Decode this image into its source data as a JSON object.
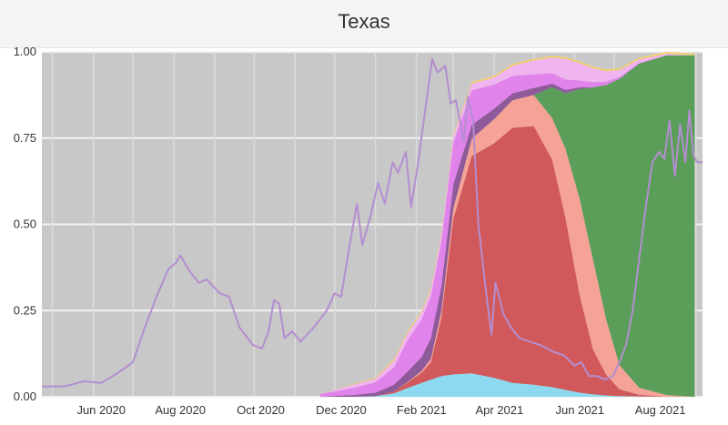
{
  "chart_data": {
    "type": "area",
    "title": "Texas",
    "x_tick_labels": [
      "Jun 2020",
      "Aug 2020",
      "Oct 2020",
      "Dec 2020",
      "Feb 2021",
      "Apr 2021",
      "Jun 2021",
      "Aug 2021"
    ],
    "y_tick_labels": [
      "0.00",
      "0.25",
      "0.50",
      "0.75",
      "1.00"
    ],
    "ylim": [
      0,
      1
    ],
    "xlim": [
      "2020-04-23",
      "2021-09-06"
    ],
    "grid": true,
    "legend": "none",
    "stack_dates": [
      "2020-11-20",
      "2020-12-15",
      "2021-01-01",
      "2021-01-15",
      "2021-01-25",
      "2021-02-05",
      "2021-02-12",
      "2021-02-20",
      "2021-03-01",
      "2021-03-15",
      "2021-04-01",
      "2021-04-15",
      "2021-05-01",
      "2021-05-15",
      "2021-05-25",
      "2021-06-05",
      "2021-06-15",
      "2021-06-25",
      "2021-07-05",
      "2021-07-20",
      "2021-08-10",
      "2021-08-31"
    ],
    "series": [
      {
        "key": "light_blue",
        "color": "#8dd9f0",
        "values": [
          0,
          0,
          0.002,
          0.01,
          0.025,
          0.04,
          0.05,
          0.06,
          0.065,
          0.068,
          0.055,
          0.04,
          0.035,
          0.028,
          0.02,
          0.012,
          0.007,
          0.004,
          0.002,
          0.001,
          0,
          0
        ]
      },
      {
        "key": "red",
        "color": "#d2595b",
        "values": [
          0,
          0,
          0,
          0.005,
          0.015,
          0.03,
          0.05,
          0.17,
          0.45,
          0.63,
          0.68,
          0.74,
          0.75,
          0.66,
          0.5,
          0.28,
          0.13,
          0.06,
          0.02,
          0.005,
          0,
          0
        ]
      },
      {
        "key": "salmon",
        "color": "#f5a396",
        "values": [
          0,
          0,
          0,
          0,
          0.002,
          0.005,
          0.01,
          0.02,
          0.03,
          0.05,
          0.07,
          0.08,
          0.09,
          0.12,
          0.2,
          0.28,
          0.26,
          0.16,
          0.07,
          0.02,
          0.005,
          0
        ]
      },
      {
        "key": "green",
        "color": "#5a9e5a",
        "values": [
          0,
          0,
          0,
          0,
          0,
          0,
          0,
          0,
          0,
          0,
          0,
          0,
          0,
          0.09,
          0.16,
          0.32,
          0.5,
          0.68,
          0.83,
          0.94,
          0.985,
          0.99
        ]
      },
      {
        "key": "dark_purple",
        "color": "#8e5a9a",
        "values": [
          0,
          0.005,
          0.01,
          0.02,
          0.03,
          0.04,
          0.06,
          0.07,
          0.07,
          0.04,
          0.03,
          0.02,
          0.02,
          0.01,
          0.01,
          0.005,
          0,
          0,
          0,
          0,
          0,
          0
        ]
      },
      {
        "key": "violet",
        "color": "#e083ea",
        "values": [
          0.008,
          0.02,
          0.03,
          0.05,
          0.09,
          0.11,
          0.12,
          0.13,
          0.12,
          0.1,
          0.07,
          0.05,
          0.04,
          0.03,
          0.03,
          0.02,
          0.015,
          0.01,
          0.005,
          0.002,
          0,
          0
        ]
      },
      {
        "key": "pink",
        "color": "#f0b4f0",
        "values": [
          0,
          0.01,
          0.01,
          0.02,
          0.02,
          0.02,
          0.02,
          0.02,
          0.02,
          0.02,
          0.02,
          0.03,
          0.04,
          0.045,
          0.06,
          0.05,
          0.04,
          0.03,
          0.02,
          0.01,
          0.005,
          0
        ]
      },
      {
        "key": "yellow",
        "color": "#f2d16a",
        "values": [
          0,
          0.002,
          0.003,
          0.005,
          0.005,
          0.005,
          0.005,
          0.005,
          0.005,
          0.005,
          0.005,
          0.005,
          0.005,
          0.005,
          0.005,
          0.005,
          0.005,
          0.005,
          0.005,
          0.005,
          0.005,
          0.005
        ]
      }
    ],
    "line": {
      "color": "#b48ed0",
      "points": [
        [
          "2020-04-23",
          0.03
        ],
        [
          "2020-05-10",
          0.03
        ],
        [
          "2020-05-25",
          0.045
        ],
        [
          "2020-06-07",
          0.04
        ],
        [
          "2020-06-20",
          0.07
        ],
        [
          "2020-07-01",
          0.1
        ],
        [
          "2020-07-10",
          0.2
        ],
        [
          "2020-07-20",
          0.3
        ],
        [
          "2020-07-28",
          0.37
        ],
        [
          "2020-08-03",
          0.39
        ],
        [
          "2020-08-06",
          0.41
        ],
        [
          "2020-08-12",
          0.37
        ],
        [
          "2020-08-20",
          0.33
        ],
        [
          "2020-08-26",
          0.34
        ],
        [
          "2020-09-05",
          0.3
        ],
        [
          "2020-09-12",
          0.29
        ],
        [
          "2020-09-20",
          0.2
        ],
        [
          "2020-09-30",
          0.15
        ],
        [
          "2020-10-07",
          0.14
        ],
        [
          "2020-10-12",
          0.19
        ],
        [
          "2020-10-16",
          0.28
        ],
        [
          "2020-10-20",
          0.27
        ],
        [
          "2020-10-24",
          0.17
        ],
        [
          "2020-10-30",
          0.19
        ],
        [
          "2020-11-05",
          0.16
        ],
        [
          "2020-11-15",
          0.2
        ],
        [
          "2020-11-25",
          0.25
        ],
        [
          "2020-12-01",
          0.3
        ],
        [
          "2020-12-06",
          0.29
        ],
        [
          "2020-12-12",
          0.43
        ],
        [
          "2020-12-18",
          0.56
        ],
        [
          "2020-12-22",
          0.44
        ],
        [
          "2020-12-28",
          0.52
        ],
        [
          "2021-01-03",
          0.62
        ],
        [
          "2021-01-08",
          0.56
        ],
        [
          "2021-01-14",
          0.68
        ],
        [
          "2021-01-18",
          0.65
        ],
        [
          "2021-01-24",
          0.71
        ],
        [
          "2021-01-28",
          0.55
        ],
        [
          "2021-02-02",
          0.67
        ],
        [
          "2021-02-08",
          0.84
        ],
        [
          "2021-02-13",
          0.98
        ],
        [
          "2021-02-17",
          0.94
        ],
        [
          "2021-02-23",
          0.96
        ],
        [
          "2021-02-27",
          0.85
        ],
        [
          "2021-03-03",
          0.86
        ],
        [
          "2021-03-06",
          0.8
        ],
        [
          "2021-03-09",
          0.74
        ],
        [
          "2021-03-12",
          0.87
        ],
        [
          "2021-03-16",
          0.8
        ],
        [
          "2021-03-20",
          0.5
        ],
        [
          "2021-03-26",
          0.3
        ],
        [
          "2021-03-30",
          0.18
        ],
        [
          "2021-04-02",
          0.33
        ],
        [
          "2021-04-08",
          0.24
        ],
        [
          "2021-04-14",
          0.2
        ],
        [
          "2021-04-20",
          0.17
        ],
        [
          "2021-04-28",
          0.16
        ],
        [
          "2021-05-06",
          0.15
        ],
        [
          "2021-05-16",
          0.13
        ],
        [
          "2021-05-24",
          0.12
        ],
        [
          "2021-06-01",
          0.09
        ],
        [
          "2021-06-06",
          0.1
        ],
        [
          "2021-06-12",
          0.06
        ],
        [
          "2021-06-18",
          0.06
        ],
        [
          "2021-06-24",
          0.05
        ],
        [
          "2021-06-30",
          0.06
        ],
        [
          "2021-07-05",
          0.1
        ],
        [
          "2021-07-10",
          0.15
        ],
        [
          "2021-07-15",
          0.25
        ],
        [
          "2021-07-20",
          0.4
        ],
        [
          "2021-07-25",
          0.55
        ],
        [
          "2021-07-30",
          0.68
        ],
        [
          "2021-08-04",
          0.71
        ],
        [
          "2021-08-08",
          0.69
        ],
        [
          "2021-08-12",
          0.8
        ],
        [
          "2021-08-16",
          0.64
        ],
        [
          "2021-08-20",
          0.79
        ],
        [
          "2021-08-24",
          0.68
        ],
        [
          "2021-08-27",
          0.83
        ],
        [
          "2021-08-30",
          0.7
        ],
        [
          "2021-09-02",
          0.68
        ],
        [
          "2021-09-06",
          0.68
        ]
      ]
    }
  }
}
